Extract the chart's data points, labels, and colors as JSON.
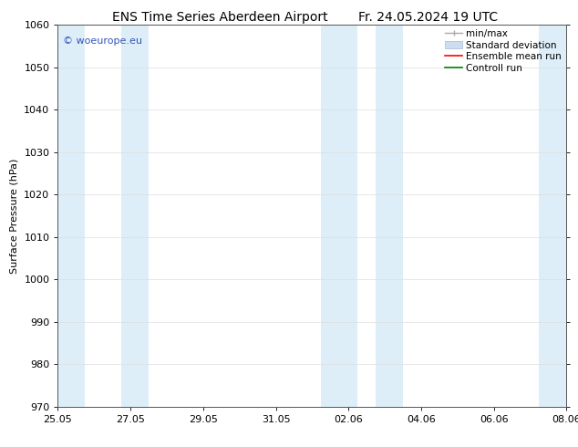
{
  "title_left": "ENS Time Series Aberdeen Airport",
  "title_right": "Fr. 24.05.2024 19 UTC",
  "ylabel": "Surface Pressure (hPa)",
  "ylim": [
    970,
    1060
  ],
  "yticks": [
    970,
    980,
    990,
    1000,
    1010,
    1020,
    1030,
    1040,
    1050,
    1060
  ],
  "xlabel_dates": [
    "25.05",
    "27.05",
    "29.05",
    "31.05",
    "02.06",
    "04.06",
    "06.06",
    "08.06"
  ],
  "x_tick_positions": [
    0,
    2,
    4,
    6,
    8,
    10,
    12,
    14
  ],
  "x_start": 0,
  "x_end": 14,
  "shaded_bands": [
    {
      "x_start": 0.0,
      "x_end": 0.75
    },
    {
      "x_start": 1.75,
      "x_end": 2.5
    },
    {
      "x_start": 7.25,
      "x_end": 8.25
    },
    {
      "x_start": 8.75,
      "x_end": 9.5
    },
    {
      "x_start": 13.25,
      "x_end": 14.0
    }
  ],
  "band_color": "#ddeef8",
  "watermark_text": "© woeurope.eu",
  "watermark_color": "#3355bb",
  "legend_items": [
    {
      "label": "min/max"
    },
    {
      "label": "Standard deviation"
    },
    {
      "label": "Ensemble mean run"
    },
    {
      "label": "Controll run"
    }
  ],
  "minmax_color": "#aaaaaa",
  "std_color": "#ccddef",
  "std_edge_color": "#aabbcc",
  "ens_color": "red",
  "ctrl_color": "green",
  "background_color": "#ffffff",
  "title_fontsize": 10,
  "axis_label_fontsize": 8,
  "tick_fontsize": 8,
  "legend_fontsize": 7.5,
  "watermark_fontsize": 8
}
